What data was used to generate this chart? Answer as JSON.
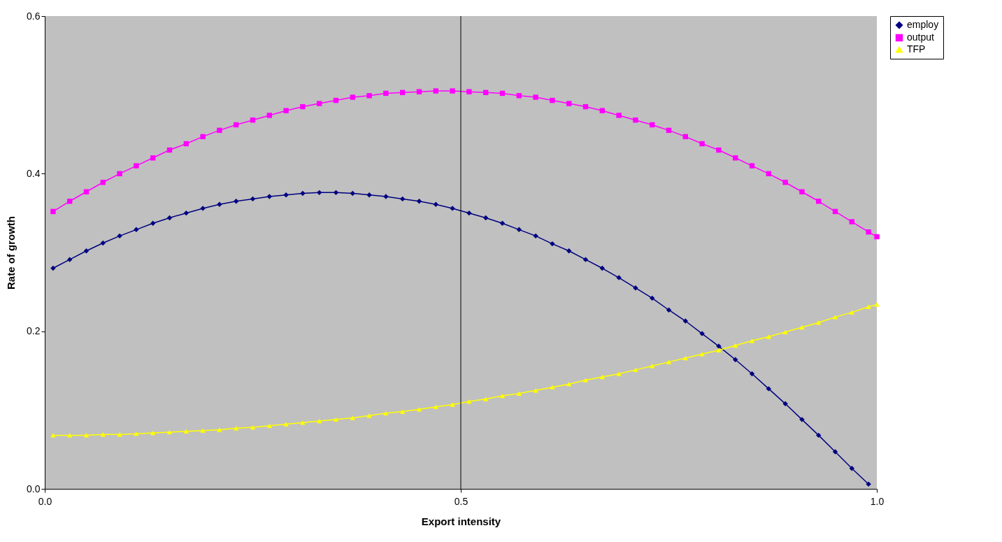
{
  "chart_data": {
    "type": "line",
    "xlabel": "Export intensity",
    "ylabel": "Rate of growth",
    "x": [
      0.01,
      0.03,
      0.05,
      0.07,
      0.09,
      0.11,
      0.13,
      0.15,
      0.17,
      0.19,
      0.21,
      0.23,
      0.25,
      0.27,
      0.29,
      0.31,
      0.33,
      0.35,
      0.37,
      0.39,
      0.41,
      0.43,
      0.45,
      0.47,
      0.49,
      0.51,
      0.53,
      0.55,
      0.57,
      0.59,
      0.61,
      0.63,
      0.65,
      0.67,
      0.69,
      0.71,
      0.73,
      0.75,
      0.77,
      0.79,
      0.81,
      0.83,
      0.85,
      0.87,
      0.89,
      0.91,
      0.93,
      0.95,
      0.97,
      0.99,
      1.0
    ],
    "series": [
      {
        "name": "employ",
        "color": "#000080",
        "marker": "diamond",
        "values": [
          0.28,
          0.291,
          0.302,
          0.312,
          0.321,
          0.329,
          0.337,
          0.344,
          0.35,
          0.356,
          0.361,
          0.365,
          0.368,
          0.371,
          0.373,
          0.375,
          0.376,
          0.376,
          0.375,
          0.373,
          0.371,
          0.368,
          0.365,
          0.361,
          0.356,
          0.35,
          0.344,
          0.337,
          0.329,
          0.321,
          0.311,
          0.302,
          0.291,
          0.28,
          0.268,
          0.255,
          0.242,
          0.227,
          0.213,
          0.197,
          0.181,
          0.164,
          0.146,
          0.127,
          0.108,
          0.088,
          0.068,
          0.047,
          0.026,
          0.006,
          null
        ]
      },
      {
        "name": "output",
        "color": "#ff00ff",
        "marker": "square",
        "values": [
          0.352,
          0.365,
          0.377,
          0.389,
          0.4,
          0.41,
          0.42,
          0.43,
          0.438,
          0.447,
          0.455,
          0.462,
          0.468,
          0.474,
          0.48,
          0.485,
          0.489,
          0.493,
          0.497,
          0.499,
          0.502,
          0.503,
          0.504,
          0.505,
          0.505,
          0.504,
          0.503,
          0.502,
          0.499,
          0.497,
          0.493,
          0.489,
          0.485,
          0.48,
          0.474,
          0.468,
          0.462,
          0.455,
          0.447,
          0.438,
          0.43,
          0.42,
          0.41,
          0.4,
          0.389,
          0.377,
          0.365,
          0.352,
          0.339,
          0.326,
          0.32
        ]
      },
      {
        "name": "TFP",
        "color": "#ffff00",
        "marker": "triangle",
        "values": [
          0.068,
          0.068,
          0.068,
          0.069,
          0.069,
          0.07,
          0.071,
          0.072,
          0.073,
          0.074,
          0.075,
          0.077,
          0.078,
          0.08,
          0.082,
          0.084,
          0.086,
          0.088,
          0.09,
          0.093,
          0.096,
          0.098,
          0.101,
          0.104,
          0.107,
          0.111,
          0.114,
          0.118,
          0.121,
          0.125,
          0.129,
          0.133,
          0.138,
          0.142,
          0.146,
          0.151,
          0.156,
          0.161,
          0.166,
          0.171,
          0.176,
          0.182,
          0.188,
          0.193,
          0.199,
          0.205,
          0.211,
          0.218,
          0.224,
          0.231,
          0.234
        ]
      }
    ],
    "xlim": [
      0,
      1
    ],
    "xticks": [
      {
        "value": 0,
        "label": "0.0"
      },
      {
        "value": 0.5,
        "label": "0.5"
      },
      {
        "value": 1,
        "label": "1.0"
      }
    ],
    "ylim": [
      0,
      0.6
    ],
    "yticks": [
      {
        "value": 0,
        "label": "0.0"
      },
      {
        "value": 0.2,
        "label": "0.2"
      },
      {
        "value": 0.4,
        "label": "0.4"
      },
      {
        "value": 0.6,
        "label": "0.6"
      }
    ],
    "ref_lines": [
      {
        "axis": "x",
        "value": 0.5,
        "color": "#000000"
      }
    ],
    "grid": false,
    "legend": "right"
  }
}
